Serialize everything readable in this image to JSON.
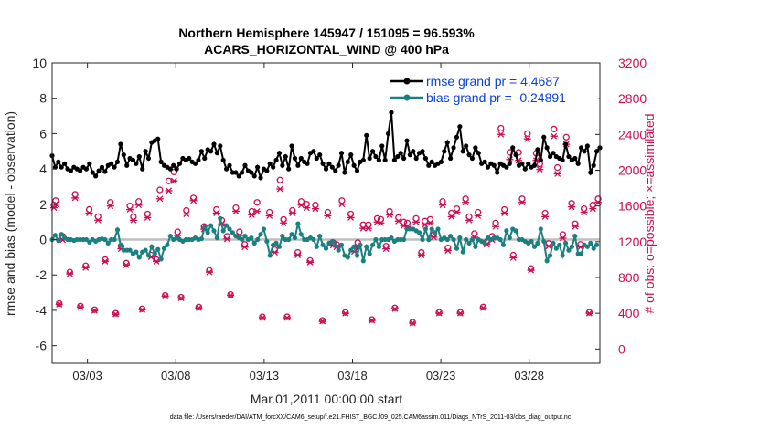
{
  "chart_data": {
    "type": "line",
    "title_line1": "Northern Hemisphere 145947 / 151095 = 96.593%",
    "title_line2": "ACARS_HORIZONTAL_WIND @ 400 hPa",
    "xlabel": "Mar.01,2011 00:00:00 start",
    "ylabel_left": "rmse and bias (model - observation)",
    "ylabel_right": "# of obs: o=possible; ×=assimilated",
    "footer": "data file: /Users/raeder/DAI/ATM_forcXX/CAM6_setup/f.e21.FHIST_BGC.f09_025.CAM6assim.011/Diags_NTrS_2011-03/obs_diag_output.nc",
    "xlim": [
      1.0,
      32.0
    ],
    "ylim_left": [
      -7,
      10
    ],
    "ylim_right": [
      -160,
      3200
    ],
    "x_ticks": [
      3,
      8,
      13,
      18,
      23,
      28
    ],
    "x_tick_labels": [
      "03/03",
      "03/08",
      "03/13",
      "03/18",
      "03/23",
      "03/28"
    ],
    "y_left_ticks": [
      -6,
      -4,
      -2,
      0,
      2,
      4,
      6,
      8,
      10
    ],
    "y_left_tick_labels": [
      "-6",
      "-4",
      "-2",
      "0",
      "2",
      "4",
      "6",
      "8",
      "10"
    ],
    "y_right_ticks": [
      0,
      400,
      800,
      1200,
      1600,
      2000,
      2400,
      2800,
      3200
    ],
    "y_right_tick_labels": [
      "0",
      "400",
      "800",
      "1200",
      "1600",
      "2000",
      "2400",
      "2800",
      "3200"
    ],
    "colors": {
      "rmse": "#000000",
      "bias": "#1a8080",
      "obs": "#cc0f55",
      "zero_line": "#bfbfbf",
      "legend_text": "#0a3fe0"
    },
    "legend": [
      {
        "name": "rmse grand pr = 4.4687",
        "color": "#000000"
      },
      {
        "name": "bias grand pr = -0.24891",
        "color": "#1a8080"
      }
    ],
    "series": [
      {
        "name": "rmse",
        "values": [
          4.75,
          4.1,
          4.4,
          4.1,
          4.3,
          4.0,
          3.9,
          4.1,
          4.0,
          3.9,
          4.1,
          4.0,
          4.3,
          3.8,
          3.6,
          3.9,
          4.1,
          3.85,
          4.2,
          4.3,
          4.1,
          4.4,
          5.4,
          4.8,
          4.2,
          4.6,
          4.5,
          4.3,
          4.7,
          4.0,
          5.0,
          4.6,
          5.5,
          5.6,
          5.7,
          4.4,
          4.2,
          4.1,
          4.0,
          4.2,
          4.0,
          4.3,
          4.6,
          4.5,
          4.6,
          4.4,
          4.3,
          4.5,
          5.0,
          4.6,
          5.1,
          5.0,
          5.4,
          4.9,
          5.3,
          4.5,
          4.0,
          4.2,
          3.8,
          3.8,
          3.6,
          3.8,
          4.2,
          3.9,
          3.8,
          3.6,
          4.1,
          3.5,
          4.0,
          3.9,
          4.3,
          4.1,
          4.5,
          4.9,
          4.2,
          4.7,
          4.0,
          5.3,
          4.6,
          4.2,
          4.6,
          4.4,
          4.3,
          4.9,
          5.0,
          4.6,
          4.8,
          4.3,
          4.0,
          4.3,
          4.1,
          3.9,
          4.2,
          4.9,
          3.8,
          4.4,
          4.8,
          4.2,
          3.9,
          4.4,
          4.5,
          5.9,
          4.6,
          5.0,
          4.7,
          4.5,
          5.3,
          4.5,
          6.0,
          7.2,
          4.5,
          4.7,
          4.9,
          4.6,
          5.6,
          4.8,
          5.0,
          4.6,
          4.9,
          5.0,
          4.6,
          4.2,
          4.4,
          4.2,
          4.3,
          4.4,
          5.0,
          5.5,
          4.6,
          5.2,
          5.8,
          6.4,
          5.0,
          5.3,
          4.8,
          4.6,
          5.2,
          4.9,
          4.3,
          4.4,
          4.1,
          4.3,
          4.2,
          3.8,
          4.3,
          4.2,
          4.1,
          4.3,
          5.2,
          4.8,
          4.2,
          4.3,
          4.0,
          4.3,
          4.1,
          4.2,
          5.1,
          4.5,
          5.8,
          5.2,
          4.7,
          4.9,
          4.7,
          4.6,
          4.5,
          5.4,
          4.7,
          4.5,
          4.6,
          4.3,
          5.2,
          5.0,
          5.3,
          3.8,
          4.2,
          5.0,
          5.2
        ]
      },
      {
        "name": "bias",
        "values": [
          0.0,
          0.25,
          -0.05,
          0.3,
          0.1,
          0.0,
          0.0,
          -0.05,
          0.0,
          0.0,
          0.0,
          0.0,
          -0.15,
          0.0,
          -0.1,
          0.0,
          0.05,
          0.0,
          -0.2,
          0.0,
          0.0,
          0.55,
          -0.3,
          -0.6,
          -0.6,
          -0.6,
          -0.8,
          -0.7,
          -1.0,
          -0.7,
          -0.6,
          -0.9,
          -0.4,
          -0.8,
          -0.55,
          -1.1,
          -0.5,
          -0.3,
          0.2,
          0.0,
          0.1,
          0.0,
          -0.1,
          0.0,
          0.0,
          0.0,
          0.1,
          0.0,
          0.05,
          0.7,
          0.4,
          0.8,
          0.5,
          0.1,
          1.2,
          0.5,
          0.8,
          0.6,
          0.4,
          0.2,
          0.1,
          0.0,
          0.2,
          0.0,
          0.1,
          -0.2,
          0.0,
          0.3,
          0.6,
          -0.1,
          -0.9,
          -0.3,
          -0.2,
          -0.4,
          0.2,
          0.0,
          0.0,
          0.3,
          0.1,
          0.9,
          0.3,
          0.0,
          0.0,
          0.1,
          0.0,
          -0.4,
          0.2,
          -0.3,
          -0.5,
          -0.2,
          -0.1,
          -0.3,
          -0.6,
          -0.3,
          -0.9,
          -1.0,
          -0.6,
          -0.4,
          -0.9,
          -0.3,
          -1.2,
          -0.4,
          -0.8,
          -0.3,
          0.0,
          -0.4,
          0.0,
          0.0,
          0.0,
          0.1,
          -0.1,
          0.0,
          0.0,
          0.0,
          0.6,
          0.6,
          0.6,
          0.5,
          0.4,
          0.0,
          0.6,
          0.0,
          0.6,
          0.4,
          0.6,
          0.0,
          0.1,
          0.0,
          0.2,
          0.0,
          -0.5,
          0.1,
          -0.7,
          0.0,
          -0.2,
          0.0,
          -0.4,
          0.0,
          -0.1,
          -0.2,
          0.1,
          0.0,
          0.1,
          0.1,
          0.0,
          -0.3,
          0.5,
          0.1,
          0.6,
          0.5,
          0.0,
          0.0,
          -0.1,
          -0.2,
          -0.1,
          -0.4,
          -0.2,
          0.6,
          -0.1,
          -1.2,
          -0.9,
          -0.2,
          -0.5,
          -0.3,
          -0.9,
          -0.2,
          -0.6,
          -0.4,
          0.2,
          -0.8,
          -0.8,
          -0.3,
          -0.4,
          -0.2,
          -0.5,
          -0.3
        ]
      }
    ],
    "obs_possible": {
      "x": [
        1.1,
        1.2,
        1.4,
        1.6,
        2.0,
        2.3,
        2.6,
        2.9,
        3.1,
        3.4,
        3.6,
        4.0,
        4.3,
        4.6,
        4.9,
        5.2,
        5.4,
        5.6,
        5.9,
        6.1,
        6.4,
        6.6,
        6.9,
        7.1,
        7.4,
        7.6,
        7.9,
        8.1,
        8.3,
        8.6,
        9.0,
        9.3,
        9.6,
        9.9,
        10.3,
        10.6,
        10.9,
        11.1,
        11.4,
        11.6,
        11.9,
        12.3,
        12.6,
        12.9,
        13.3,
        13.6,
        13.9,
        14.1,
        14.3,
        14.6,
        14.9,
        15.1,
        15.4,
        15.6,
        15.9,
        16.3,
        16.6,
        16.9,
        17.1,
        17.4,
        17.6,
        17.9,
        18.1,
        18.3,
        18.6,
        18.9,
        19.1,
        19.4,
        19.6,
        19.9,
        20.1,
        20.4,
        20.6,
        20.9,
        21.1,
        21.4,
        21.6,
        21.9,
        22.1,
        22.4,
        22.6,
        22.9,
        23.1,
        23.4,
        23.6,
        23.9,
        24.1,
        24.4,
        24.6,
        24.9,
        25.1,
        25.4,
        25.6,
        25.9,
        26.1,
        26.4,
        26.6,
        26.9,
        27.1,
        27.4,
        27.6,
        27.9,
        28.1,
        28.4,
        28.6,
        28.9,
        29.1,
        29.4,
        29.6,
        29.9,
        30.1,
        30.4,
        30.6,
        30.9,
        31.1,
        31.4,
        31.6,
        31.9
      ],
      "values": [
        1610,
        1660,
        510,
        1260,
        860,
        1730,
        480,
        930,
        1560,
        440,
        1480,
        1000,
        1640,
        400,
        1150,
        960,
        1600,
        1480,
        1650,
        450,
        1510,
        1050,
        1000,
        1780,
        600,
        1880,
        1980,
        1310,
        580,
        1550,
        1690,
        470,
        1370,
        880,
        1560,
        1440,
        1260,
        610,
        1580,
        1310,
        1170,
        1540,
        1640,
        360,
        1530,
        1110,
        1890,
        1450,
        360,
        1550,
        1080,
        1650,
        1620,
        990,
        1610,
        320,
        1530,
        1190,
        1170,
        1660,
        410,
        1510,
        1120,
        1190,
        1390,
        1390,
        330,
        1460,
        1450,
        1150,
        1540,
        460,
        1470,
        1420,
        1410,
        300,
        1460,
        1080,
        1430,
        1450,
        1280,
        410,
        1650,
        1130,
        1520,
        1570,
        410,
        1680,
        1480,
        1290,
        1530,
        470,
        1200,
        1260,
        1410,
        2470,
        1560,
        2200,
        1050,
        2200,
        1680,
        2410,
        900,
        2190,
        2070,
        1520,
        1180,
        2460,
        2030,
        1280,
        2370,
        1630,
        1400,
        1170,
        1570,
        410,
        1610,
        1680
      ]
    },
    "obs_assimilated": {
      "x": [
        1.1,
        1.2,
        1.4,
        1.6,
        2.0,
        2.3,
        2.6,
        2.9,
        3.1,
        3.4,
        3.6,
        4.0,
        4.3,
        4.6,
        4.9,
        5.2,
        5.4,
        5.6,
        5.9,
        6.1,
        6.4,
        6.6,
        6.9,
        7.1,
        7.4,
        7.6,
        7.9,
        8.1,
        8.3,
        8.6,
        9.0,
        9.3,
        9.6,
        9.9,
        10.3,
        10.6,
        10.9,
        11.1,
        11.4,
        11.6,
        11.9,
        12.3,
        12.6,
        12.9,
        13.3,
        13.6,
        13.9,
        14.1,
        14.3,
        14.6,
        14.9,
        15.1,
        15.4,
        15.6,
        15.9,
        16.3,
        16.6,
        16.9,
        17.1,
        17.4,
        17.6,
        17.9,
        18.1,
        18.3,
        18.6,
        18.9,
        19.1,
        19.4,
        19.6,
        19.9,
        20.1,
        20.4,
        20.6,
        20.9,
        21.1,
        21.4,
        21.6,
        21.9,
        22.1,
        22.4,
        22.6,
        22.9,
        23.1,
        23.4,
        23.6,
        23.9,
        24.1,
        24.4,
        24.6,
        24.9,
        25.1,
        25.4,
        25.6,
        25.9,
        26.1,
        26.4,
        26.6,
        26.9,
        27.1,
        27.4,
        27.6,
        27.9,
        28.1,
        28.4,
        28.6,
        28.9,
        29.1,
        29.4,
        29.6,
        29.9,
        30.1,
        30.4,
        30.6,
        30.9,
        31.1,
        31.4,
        31.6,
        31.9
      ],
      "values": [
        1580,
        1620,
        500,
        1220,
        840,
        1690,
        470,
        910,
        1520,
        430,
        1440,
        980,
        1600,
        390,
        1120,
        940,
        1560,
        1440,
        1610,
        440,
        1470,
        1030,
        980,
        1680,
        590,
        1770,
        1880,
        1270,
        570,
        1510,
        1660,
        460,
        1340,
        860,
        1520,
        1400,
        1230,
        600,
        1540,
        1270,
        1140,
        1500,
        1540,
        350,
        1490,
        1080,
        1790,
        1410,
        350,
        1520,
        1050,
        1610,
        1580,
        970,
        1570,
        310,
        1490,
        1160,
        1140,
        1620,
        400,
        1470,
        1090,
        1150,
        1350,
        1350,
        320,
        1420,
        1410,
        1120,
        1500,
        450,
        1430,
        1380,
        1370,
        290,
        1420,
        1050,
        1390,
        1410,
        1250,
        400,
        1610,
        1100,
        1480,
        1530,
        400,
        1640,
        1440,
        1250,
        1490,
        460,
        1170,
        1220,
        1370,
        2400,
        1520,
        2120,
        1020,
        2110,
        1640,
        2350,
        880,
        2110,
        2010,
        1480,
        1150,
        2380,
        1960,
        1240,
        2290,
        1590,
        1370,
        1140,
        1530,
        400,
        1570,
        1640
      ]
    }
  }
}
